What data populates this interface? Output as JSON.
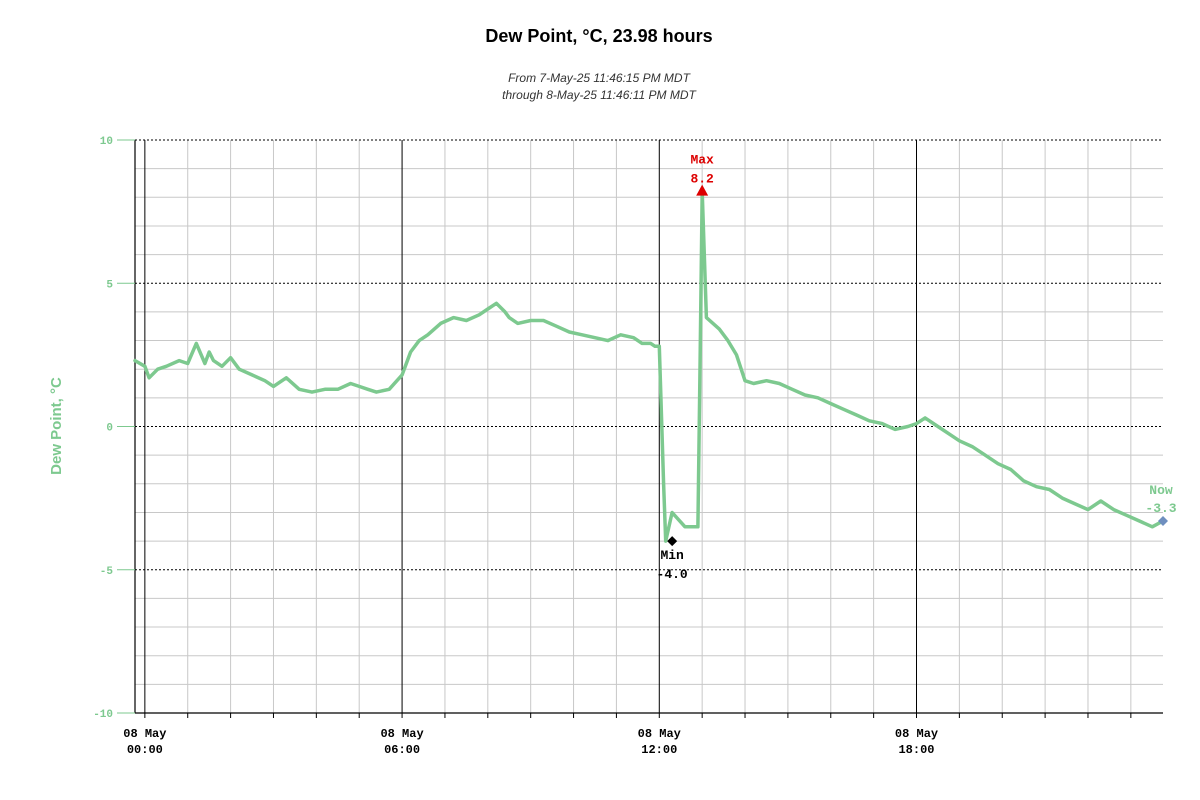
{
  "chart_data": {
    "type": "line",
    "title": "Dew Point, °C, 23.98 hours",
    "subtitle_line1": "From 7-May-25 11:46:15 PM MDT",
    "subtitle_line2": "through 8-May-25 11:46:11 PM MDT",
    "ylabel": "Dew Point, °C",
    "xlabel": "",
    "x_unit": "hours since 08 May 00:00",
    "xlim": [
      -0.23,
      23.75
    ],
    "ylim": [
      -10,
      10
    ],
    "y_ticks": [
      {
        "value": 10,
        "label": "10"
      },
      {
        "value": 5,
        "label": "5"
      },
      {
        "value": 0,
        "label": "0"
      },
      {
        "value": -5,
        "label": "-5"
      },
      {
        "value": -10,
        "label": "-10"
      }
    ],
    "x_ticks": [
      {
        "value": 0,
        "date": "08 May",
        "time": "00:00"
      },
      {
        "value": 6,
        "date": "08 May",
        "time": "06:00"
      },
      {
        "value": 12,
        "date": "08 May",
        "time": "12:00"
      },
      {
        "value": 18,
        "date": "08 May",
        "time": "18:00"
      }
    ],
    "grid": true,
    "legend": "none",
    "series": [
      {
        "color": "#7dc98f",
        "x": [
          -0.23,
          0.0,
          0.1,
          0.3,
          0.5,
          0.8,
          1.0,
          1.2,
          1.4,
          1.5,
          1.6,
          1.8,
          2.0,
          2.2,
          2.5,
          2.8,
          3.0,
          3.3,
          3.6,
          3.9,
          4.2,
          4.5,
          4.8,
          5.0,
          5.2,
          5.4,
          5.7,
          6.0,
          6.2,
          6.4,
          6.6,
          6.9,
          7.2,
          7.5,
          7.8,
          8.0,
          8.2,
          8.4,
          8.5,
          8.7,
          9.0,
          9.3,
          9.6,
          9.9,
          10.2,
          10.5,
          10.8,
          11.1,
          11.4,
          11.6,
          11.8,
          11.9,
          12.0,
          12.1,
          12.15,
          12.3,
          12.6,
          12.9,
          12.95,
          13.0,
          13.1,
          13.4,
          13.6,
          13.8,
          14.0,
          14.2,
          14.5,
          14.8,
          15.1,
          15.4,
          15.7,
          16.0,
          16.3,
          16.6,
          16.9,
          17.2,
          17.5,
          17.8,
          18.0,
          18.2,
          18.5,
          18.8,
          19.0,
          19.3,
          19.6,
          19.9,
          20.2,
          20.5,
          20.8,
          21.1,
          21.4,
          21.7,
          22.0,
          22.3,
          22.6,
          22.9,
          23.2,
          23.5,
          23.75
        ],
        "values": [
          2.3,
          2.1,
          1.7,
          2.0,
          2.1,
          2.3,
          2.2,
          2.9,
          2.2,
          2.6,
          2.3,
          2.1,
          2.4,
          2.0,
          1.8,
          1.6,
          1.4,
          1.7,
          1.3,
          1.2,
          1.3,
          1.3,
          1.5,
          1.4,
          1.3,
          1.2,
          1.3,
          1.8,
          2.6,
          3.0,
          3.2,
          3.6,
          3.8,
          3.7,
          3.9,
          4.1,
          4.3,
          4.0,
          3.8,
          3.6,
          3.7,
          3.7,
          3.5,
          3.3,
          3.2,
          3.1,
          3.0,
          3.2,
          3.1,
          2.9,
          2.9,
          2.8,
          2.8,
          -2.0,
          -4.0,
          -3.0,
          -3.5,
          -3.5,
          2.0,
          8.2,
          3.8,
          3.4,
          3.0,
          2.5,
          1.6,
          1.5,
          1.6,
          1.5,
          1.3,
          1.1,
          1.0,
          0.8,
          0.6,
          0.4,
          0.2,
          0.1,
          -0.1,
          0.0,
          0.1,
          0.3,
          0.0,
          -0.3,
          -0.5,
          -0.7,
          -1.0,
          -1.3,
          -1.5,
          -1.9,
          -2.1,
          -2.2,
          -2.5,
          -2.7,
          -2.9,
          -2.6,
          -2.9,
          -3.1,
          -3.3,
          -3.5,
          -3.3
        ]
      }
    ],
    "annotations": {
      "max": {
        "label": "Max",
        "value_text": "8.2",
        "x": 13.0,
        "y": 8.2,
        "color": "#dd0000"
      },
      "min": {
        "label": "Min",
        "value_text": "-4.0",
        "x": 12.3,
        "y": -4.0,
        "color": "#000000"
      },
      "now": {
        "label": "Now",
        "value_text": "-3.3",
        "x": 23.75,
        "y": -3.3,
        "color": "#7dc98f",
        "marker_color": "#6f8fbf"
      }
    },
    "colors": {
      "line": "#7dc98f",
      "axis_label": "#7dc98f",
      "grid_minor": "#c8c8c8",
      "grid_major": "#000000"
    }
  }
}
